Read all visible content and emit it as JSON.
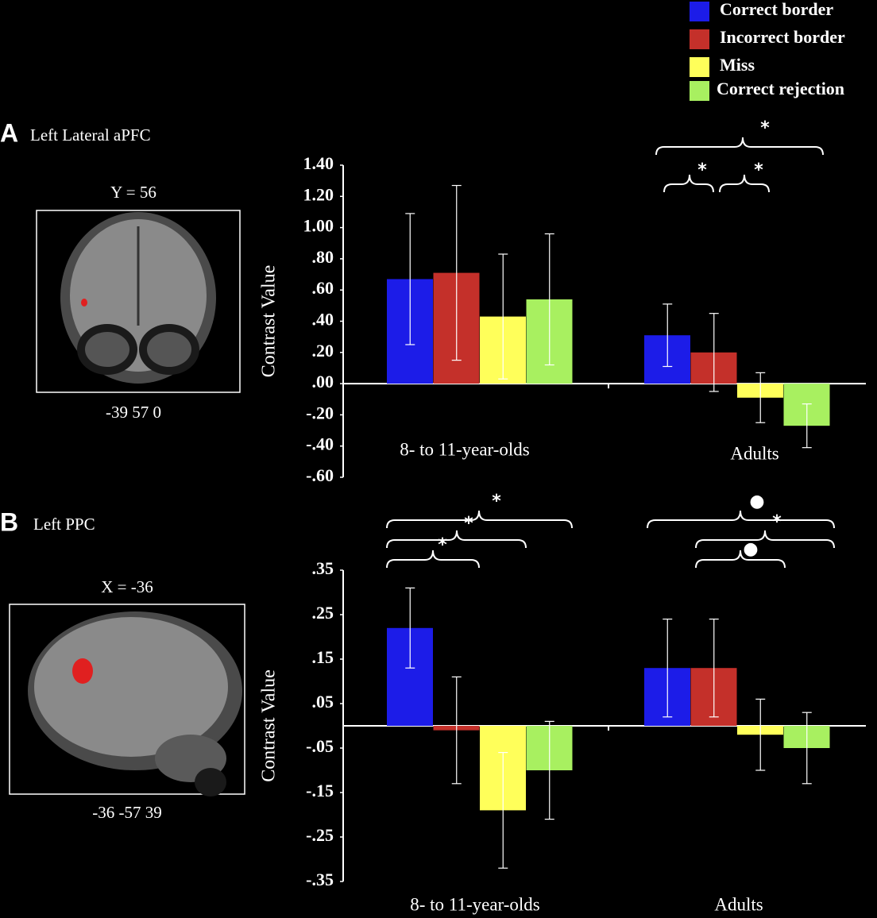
{
  "chart_data": [
    {
      "type": "bar",
      "panel": "A",
      "title": "Left Lateral aPFC",
      "image_label": "Y = 56",
      "image_coords": "-39 57 0",
      "ylabel": "Contrast Value",
      "categories": [
        "8- to 11-year-olds",
        "Adults"
      ],
      "series": [
        {
          "name": "Correct border",
          "color": "#1c1ce8",
          "values": [
            0.67,
            0.31
          ],
          "errors": [
            0.42,
            0.2
          ]
        },
        {
          "name": "Incorrect border",
          "color": "#c4302a",
          "values": [
            0.71,
            0.2
          ],
          "errors": [
            0.56,
            0.25
          ]
        },
        {
          "name": "Miss",
          "color": "#ffff5a",
          "values": [
            0.43,
            -0.09
          ],
          "errors": [
            0.4,
            0.16
          ]
        },
        {
          "name": "Correct rejection",
          "color": "#a8f060",
          "values": [
            0.54,
            -0.27
          ],
          "errors": [
            0.42,
            0.14
          ]
        }
      ],
      "ylim": [
        -0.6,
        1.4
      ],
      "yticks": [
        {
          "value": 1.4,
          "label": "1.40"
        },
        {
          "value": 1.2,
          "label": "1.20"
        },
        {
          "value": 1.0,
          "label": "1.00"
        },
        {
          "value": 0.8,
          "label": ".80"
        },
        {
          "value": 0.6,
          "label": ".60"
        },
        {
          "value": 0.4,
          "label": ".40"
        },
        {
          "value": 0.2,
          "label": ".20"
        },
        {
          "value": 0,
          "label": ".00"
        },
        {
          "value": -0.2,
          "label": "-.20"
        },
        {
          "value": -0.4,
          "label": "-.40"
        },
        {
          "value": -0.6,
          "label": "-.60"
        }
      ],
      "annotations": [
        "*",
        "*",
        "*"
      ]
    },
    {
      "type": "bar",
      "panel": "B",
      "title": "Left PPC",
      "image_label": "X = -36",
      "image_coords": "-36 -57 39",
      "ylabel": "Contrast Value",
      "categories": [
        "8- to 11-year-olds",
        "Adults"
      ],
      "series": [
        {
          "color": "#1c1ce8",
          "values": [
            0.22,
            0.13
          ],
          "errors": [
            0.09,
            0.11
          ]
        },
        {
          "color": "#c4302a",
          "values": [
            -0.01,
            0.13
          ],
          "errors": [
            0.12,
            0.11
          ]
        },
        {
          "color": "#ffff5a",
          "values": [
            -0.19,
            -0.02
          ],
          "errors": [
            0.13,
            0.08
          ]
        },
        {
          "color": "#a8f060",
          "values": [
            -0.1,
            -0.05
          ],
          "errors": [
            0.11,
            0.08
          ]
        }
      ],
      "ylim": [
        -0.35,
        0.35
      ],
      "yticks": [
        {
          "value": 0.35,
          "label": ".35"
        },
        {
          "value": 0.25,
          "label": ".25"
        },
        {
          "value": 0.15,
          "label": ".15"
        },
        {
          "value": 0.05,
          "label": ".05"
        },
        {
          "value": -0.05,
          "label": "-.05"
        },
        {
          "value": -0.15,
          "label": "-.15"
        },
        {
          "value": -0.25,
          "label": "-.25"
        },
        {
          "value": -0.35,
          "label": "-.35"
        }
      ],
      "annotations": [
        "*",
        "*",
        "*",
        "●",
        "*",
        "●"
      ]
    }
  ]
}
